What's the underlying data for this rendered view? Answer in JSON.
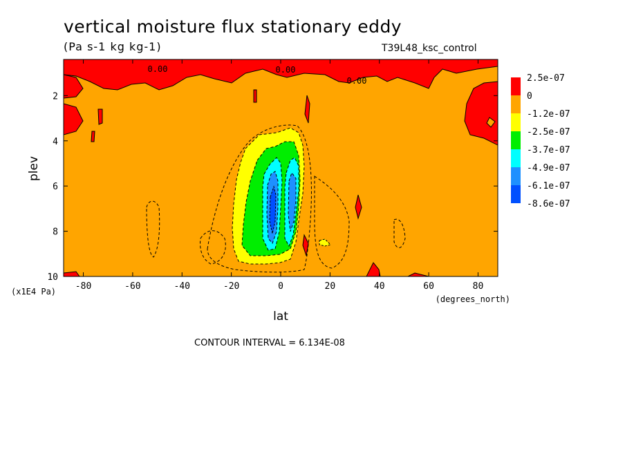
{
  "title": "vertical moisture flux stationary eddy",
  "units_label": "(Pa s-1 kg kg-1)",
  "run_label": "T39L48_ksc_control",
  "contour_interval": "CONTOUR INTERVAL = 6.134E-08",
  "colors": {
    "red": "#ff0000",
    "orange": "#ffa500",
    "yellow": "#ffff00",
    "green": "#00ee00",
    "cyan": "#00ffff",
    "lightblue": "#1e90ff",
    "blue": "#0050ff"
  },
  "chart_data": {
    "type": "heatmap",
    "title": "vertical moisture flux stationary eddy",
    "subtitle": "(Pa s-1 kg kg-1)",
    "xlabel": "lat",
    "xunit": "(degrees_north)",
    "ylabel": "plev",
    "yunit": "(x1E4 Pa)",
    "xlim": [
      -88,
      88
    ],
    "ylim": [
      10,
      0.4
    ],
    "x_ticks": [
      "-80",
      "-60",
      "-40",
      "-20",
      "0",
      "20",
      "40",
      "60",
      "80"
    ],
    "x_tick_values": [
      -80,
      -60,
      -40,
      -20,
      0,
      20,
      40,
      60,
      80
    ],
    "y_ticks": [
      "2",
      "4",
      "6",
      "8",
      "10"
    ],
    "y_tick_values": [
      2,
      4,
      6,
      8,
      10
    ],
    "colorbar_labels": [
      "2.5e-07",
      "0",
      "-1.2e-07",
      "-2.5e-07",
      "-3.7e-07",
      "-4.9e-07",
      "-6.1e-07",
      "-8.6e-07"
    ],
    "contour_labels": [
      "0.00",
      "0.00",
      "0.00"
    ],
    "background_level": "0 to -1.2e-07",
    "positive_regions": [
      {
        "lat": [
          -88,
          88
        ],
        "plev": [
          0.4,
          1.5
        ],
        "note": "upper positive band"
      },
      {
        "lat": [
          75,
          88
        ],
        "plev": [
          1.2,
          3.6
        ]
      },
      {
        "lat": [
          -88,
          -82
        ],
        "plev": [
          1.5,
          3.6
        ]
      }
    ],
    "minimum": {
      "lat": -5,
      "plev": 6.6,
      "value": "-8.6e-07"
    }
  }
}
